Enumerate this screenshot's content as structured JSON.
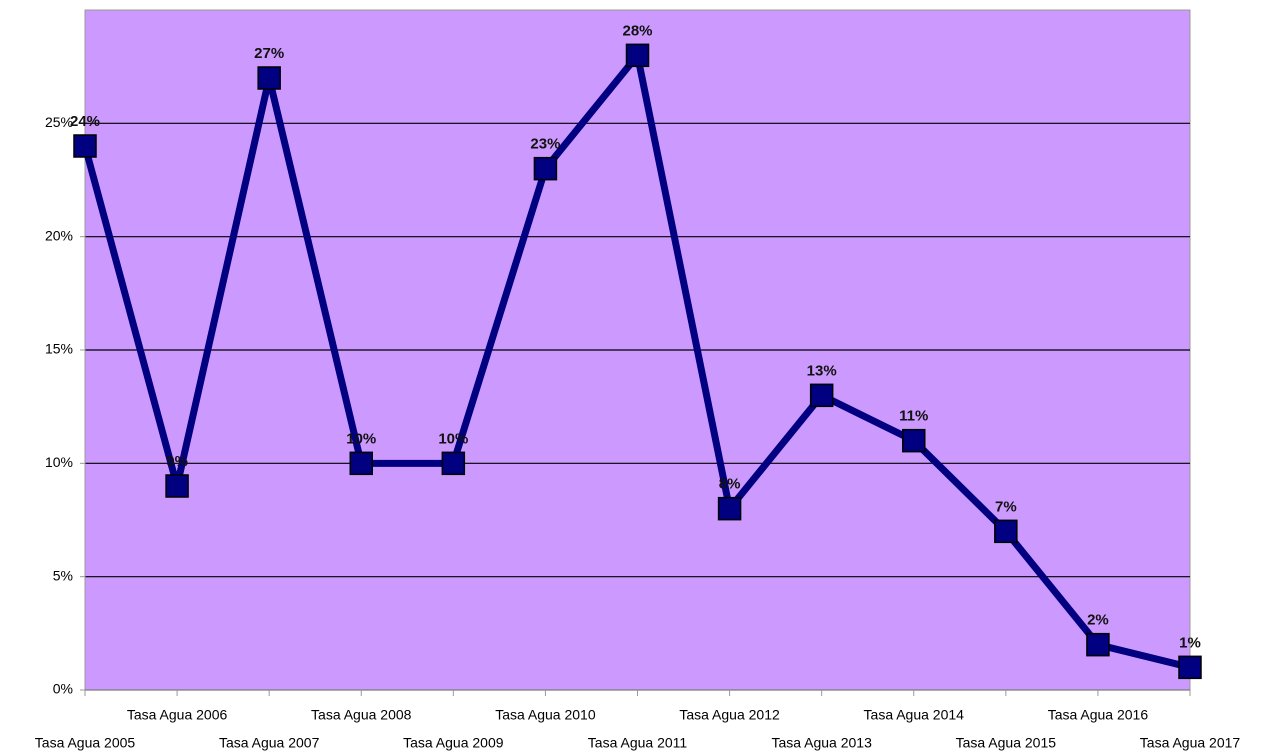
{
  "chart_data": {
    "type": "line",
    "categories": [
      "Tasa Agua 2005",
      "Tasa Agua 2006",
      "Tasa Agua 2007",
      "Tasa Agua 2008",
      "Tasa Agua 2009",
      "Tasa Agua 2010",
      "Tasa Agua 2011",
      "Tasa Agua 2012",
      "Tasa Agua 2013",
      "Tasa Agua 2014",
      "Tasa Agua 2015",
      "Tasa Agua 2016",
      "Tasa Agua 2017"
    ],
    "series": [
      {
        "color": "#000080",
        "values": [
          24,
          9,
          27,
          10,
          10,
          23,
          28,
          8,
          13,
          11,
          7,
          2,
          1
        ],
        "value_labels": [
          "24%",
          "9%",
          "27%",
          "10%",
          "10%",
          "23%",
          "28%",
          "8%",
          "13%",
          "11%",
          "7%",
          "2%",
          "1%"
        ]
      }
    ],
    "ylim": [
      0,
      30
    ],
    "yticks": [
      {
        "value": 0,
        "label": "0%"
      },
      {
        "value": 5,
        "label": "5%"
      },
      {
        "value": 10,
        "label": "10%"
      },
      {
        "value": 15,
        "label": "15%"
      },
      {
        "value": 20,
        "label": "20%"
      },
      {
        "value": 25,
        "label": "25%"
      }
    ],
    "grid": true,
    "background": "#cc99ff"
  }
}
